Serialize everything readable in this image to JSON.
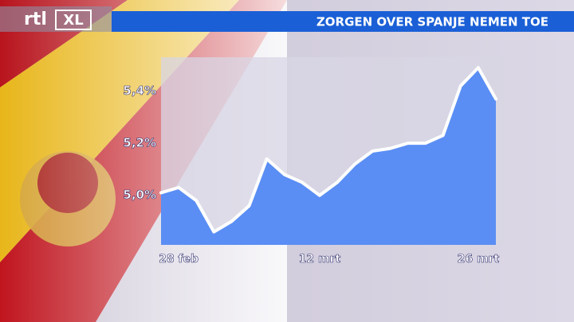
{
  "logo": {
    "brand": "rtl",
    "product": "XL"
  },
  "chart_data": {
    "type": "area-line",
    "title": "ZORGEN OVER SPANJE NEMEN TOE",
    "categories": [
      null,
      "28 feb",
      null,
      null,
      null,
      null,
      null,
      null,
      null,
      "12 mrt",
      null,
      null,
      null,
      null,
      null,
      null,
      null,
      null,
      "26 mrt",
      null
    ],
    "values": [
      5.01,
      5.03,
      4.98,
      4.86,
      4.9,
      4.96,
      5.14,
      5.08,
      5.05,
      5.0,
      5.05,
      5.12,
      5.17,
      5.18,
      5.2,
      5.2,
      5.23,
      5.42,
      5.49,
      5.37
    ],
    "color": "#5a8ef4",
    "line_color": "#ffffff",
    "ylim": [
      4.81,
      5.53
    ],
    "yticks": [
      {
        "value": 5.0,
        "label": "5,0%"
      },
      {
        "value": 5.2,
        "label": "5,2%"
      },
      {
        "value": 5.4,
        "label": "5,4%"
      }
    ]
  }
}
